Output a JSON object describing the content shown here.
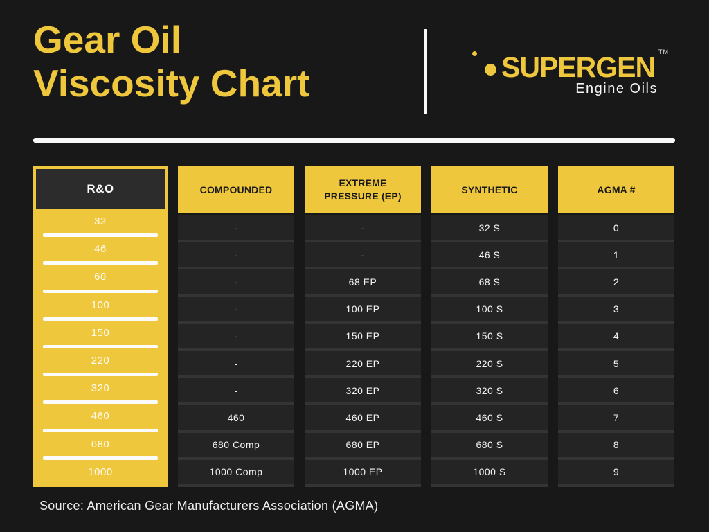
{
  "page": {
    "title_line1": "Gear Oil",
    "title_line2": "Viscosity Chart",
    "source": "Source: American Gear Manufacturers Association (AGMA)"
  },
  "brand": {
    "name": "SUPERGEN",
    "trademark": "TM",
    "tagline": "Engine Oils"
  },
  "colors": {
    "accent_yellow": "#EFC73C",
    "background": "#181818",
    "cell_dark": "#242424",
    "cell_separator": "#343434",
    "header_box_dark": "#2C2C2C",
    "white": "#F8F8F8"
  },
  "chart_data": {
    "type": "table",
    "title": "Gear Oil Viscosity Chart",
    "source": "American Gear Manufacturers Association (AGMA)",
    "columns": [
      "R&O",
      "COMPOUNDED",
      "EXTREME PRESSURE (EP)",
      "SYNTHETIC",
      "AGMA #"
    ],
    "rows": [
      [
        "32",
        "-",
        "-",
        "32 S",
        "0"
      ],
      [
        "46",
        "-",
        "-",
        "46 S",
        "1"
      ],
      [
        "68",
        "-",
        "68 EP",
        "68 S",
        "2"
      ],
      [
        "100",
        "-",
        "100 EP",
        "100 S",
        "3"
      ],
      [
        "150",
        "-",
        "150 EP",
        "150 S",
        "4"
      ],
      [
        "220",
        "-",
        "220 EP",
        "220 S",
        "5"
      ],
      [
        "320",
        "-",
        "320 EP",
        "320 S",
        "6"
      ],
      [
        "460",
        "460",
        "460 EP",
        "460 S",
        "7"
      ],
      [
        "680",
        "680 Comp",
        "680 EP",
        "680 S",
        "8"
      ],
      [
        "1000",
        "1000 Comp",
        "1000 EP",
        "1000 S",
        "9"
      ]
    ]
  }
}
